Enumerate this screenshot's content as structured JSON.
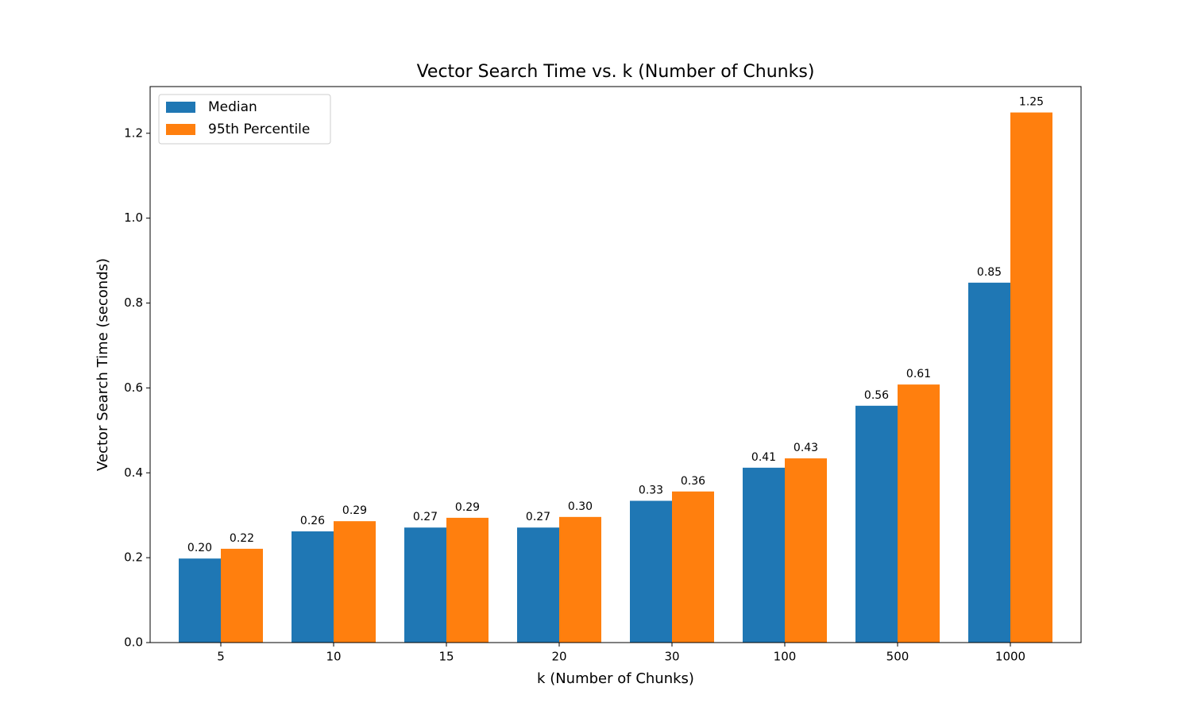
{
  "chart_data": {
    "type": "bar",
    "title": "Vector Search Time vs. k (Number of Chunks)",
    "x_label": "k (Number of Chunks)",
    "y_label": "Vector Search Time (seconds)",
    "categories": [
      "5",
      "10",
      "15",
      "20",
      "30",
      "100",
      "500",
      "1000"
    ],
    "series": [
      {
        "name": "Median",
        "color": "#1f77b4",
        "values": [
          0.198,
          0.262,
          0.271,
          0.271,
          0.334,
          0.412,
          0.558,
          0.848
        ],
        "value_labels": [
          "0.20",
          "0.26",
          "0.27",
          "0.27",
          "0.33",
          "0.41",
          "0.56",
          "0.85"
        ]
      },
      {
        "name": "95th Percentile",
        "color": "#ff7f0e",
        "values": [
          0.221,
          0.286,
          0.294,
          0.296,
          0.356,
          0.434,
          0.608,
          1.249
        ],
        "value_labels": [
          "0.22",
          "0.29",
          "0.29",
          "0.30",
          "0.36",
          "0.43",
          "0.61",
          "1.25"
        ]
      }
    ],
    "ylim": [
      0,
      1.31
    ],
    "yticks": [
      {
        "value": 0,
        "label": "0.0"
      },
      0.2,
      0.4,
      0.6,
      0.8,
      {
        "value": 1,
        "label": "1.0"
      },
      1.2
    ],
    "grid": false,
    "legend": "upper left"
  }
}
